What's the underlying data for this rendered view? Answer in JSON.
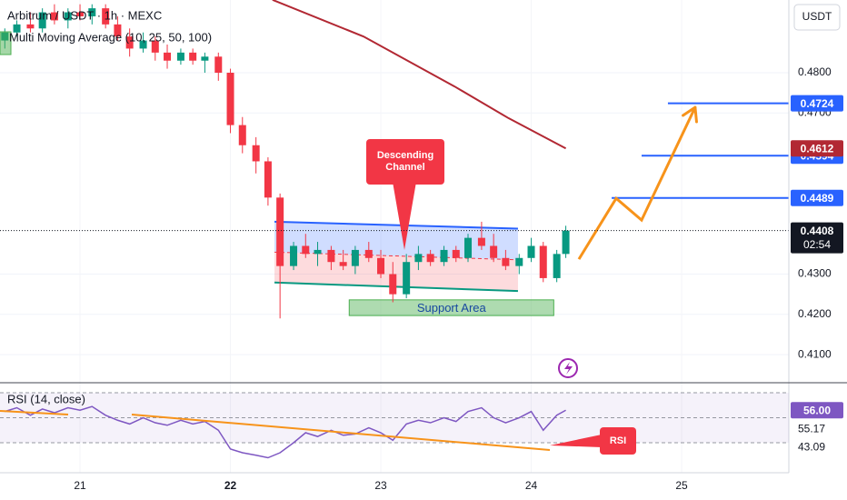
{
  "chart_data": {
    "type": "candlestick",
    "title": "Arbitrum / USDT · 1h · MEXC",
    "subtitle": "Multi Moving Average (10, 25, 50, 100)",
    "currency": "USDT",
    "up_color": "#089981",
    "down_color": "#f23645",
    "x": [
      20.5,
      20.58,
      20.67,
      20.75,
      20.83,
      20.92,
      21.0,
      21.08,
      21.17,
      21.25,
      21.33,
      21.42,
      21.5,
      21.58,
      21.67,
      21.75,
      21.83,
      21.92,
      22.0,
      22.08,
      22.17,
      22.25,
      22.33,
      22.42,
      22.5,
      22.58,
      22.67,
      22.75,
      22.83,
      22.92,
      23.0,
      23.08,
      23.17,
      23.25,
      23.33,
      23.42,
      23.5,
      23.58,
      23.67,
      23.75,
      23.83,
      23.92,
      24.0,
      24.08,
      24.17,
      24.23
    ],
    "open": [
      0.488,
      0.49,
      0.492,
      0.491,
      0.495,
      0.493,
      0.495,
      0.494,
      0.496,
      0.492,
      0.489,
      0.486,
      0.488,
      0.485,
      0.483,
      0.485,
      0.483,
      0.484,
      0.48,
      0.467,
      0.462,
      0.458,
      0.449,
      0.432,
      0.437,
      0.435,
      0.436,
      0.433,
      0.432,
      0.436,
      0.434,
      0.43,
      0.425,
      0.433,
      0.435,
      0.433,
      0.436,
      0.434,
      0.439,
      0.437,
      0.434,
      0.432,
      0.434,
      0.437,
      0.429,
      0.435
    ],
    "high": [
      0.491,
      0.493,
      0.495,
      0.496,
      0.497,
      0.496,
      0.497,
      0.497,
      0.497,
      0.494,
      0.491,
      0.49,
      0.489,
      0.487,
      0.486,
      0.486,
      0.485,
      0.485,
      0.481,
      0.469,
      0.464,
      0.459,
      0.45,
      0.438,
      0.44,
      0.438,
      0.437,
      0.436,
      0.437,
      0.438,
      0.436,
      0.433,
      0.435,
      0.437,
      0.436,
      0.437,
      0.437,
      0.44,
      0.443,
      0.44,
      0.436,
      0.435,
      0.439,
      0.438,
      0.436,
      0.442
    ],
    "low": [
      0.486,
      0.489,
      0.49,
      0.49,
      0.492,
      0.491,
      0.493,
      0.492,
      0.491,
      0.488,
      0.484,
      0.485,
      0.483,
      0.481,
      0.482,
      0.482,
      0.48,
      0.478,
      0.465,
      0.46,
      0.455,
      0.447,
      0.419,
      0.431,
      0.434,
      0.432,
      0.431,
      0.431,
      0.43,
      0.433,
      0.429,
      0.423,
      0.424,
      0.431,
      0.432,
      0.432,
      0.433,
      0.433,
      0.436,
      0.433,
      0.431,
      0.43,
      0.433,
      0.428,
      0.428,
      0.434
    ],
    "close": [
      0.49,
      0.492,
      0.491,
      0.495,
      0.493,
      0.495,
      0.494,
      0.496,
      0.492,
      0.489,
      0.486,
      0.488,
      0.485,
      0.483,
      0.485,
      0.483,
      0.484,
      0.48,
      0.467,
      0.462,
      0.458,
      0.449,
      0.432,
      0.437,
      0.435,
      0.436,
      0.433,
      0.432,
      0.436,
      0.434,
      0.43,
      0.425,
      0.433,
      0.435,
      0.433,
      0.436,
      0.434,
      0.439,
      0.437,
      0.434,
      0.432,
      0.434,
      0.437,
      0.429,
      0.435,
      0.4408
    ],
    "xlim": [
      20.468,
      25.713
    ],
    "xticks": [
      21,
      22,
      23,
      24,
      25
    ],
    "ylim": [
      0.40325,
      0.49806
    ],
    "yticks": [
      {
        "value": 0.41,
        "label": "0.4100"
      },
      {
        "value": 0.42,
        "label": "0.4200"
      },
      {
        "value": 0.43,
        "label": "0.4300"
      },
      {
        "value": 0.47,
        "label": "0.4700"
      },
      {
        "value": 0.48,
        "label": "0.4800"
      }
    ],
    "moving_average": {
      "color": "#b22833",
      "x": [
        22.28,
        22.885,
        23.49,
        23.85,
        24.23
      ],
      "values": [
        0.4981,
        0.489,
        0.4766,
        0.4687,
        0.4612
      ],
      "value_label": "0.4612"
    },
    "last_price": {
      "value": 0.4408,
      "label": "0.4408",
      "countdown": "02:54"
    },
    "levels": {
      "color": "#2962ff",
      "x_start": [
        24.909,
        24.734,
        24.535
      ],
      "values": [
        0.4724,
        0.4594,
        0.4489
      ],
      "value_labels": [
        "0.4724",
        "0.4594",
        "0.4489"
      ]
    },
    "projection": {
      "color": "#f7931a",
      "x": [
        24.317,
        24.565,
        24.734,
        25.09
      ],
      "values": [
        0.4337,
        0.4488,
        0.4434,
        0.4714
      ]
    },
    "channel": {
      "x": [
        22.293,
        23.912
      ],
      "upper": [
        0.443,
        0.4413
      ],
      "lower": [
        0.4279,
        0.4258
      ],
      "annotation": "Descending Channel"
    },
    "support": {
      "x": [
        22.79,
        24.15
      ],
      "values": [
        0.4236,
        0.4197
      ],
      "label": "Support Area"
    },
    "rsi": {
      "title": "RSI (14, close)",
      "color": "#7e57c2",
      "ylim": [
        6.0,
        77.3
      ],
      "levels": [
        70,
        50,
        30
      ],
      "values": [
        55,
        58,
        52,
        57,
        54,
        58,
        56,
        59,
        52,
        48,
        45,
        50,
        46,
        44,
        48,
        45,
        47,
        40,
        25,
        22,
        20,
        18,
        22,
        30,
        38,
        35,
        40,
        36,
        37,
        42,
        38,
        32,
        45,
        48,
        46,
        50,
        47,
        55,
        58,
        50,
        46,
        50,
        55,
        40,
        52,
        56
      ],
      "labels": [
        56,
        55.17,
        43.09
      ],
      "value_labels": [
        "56.00",
        "55.17",
        "43.09"
      ],
      "annotation": "RSI"
    }
  }
}
